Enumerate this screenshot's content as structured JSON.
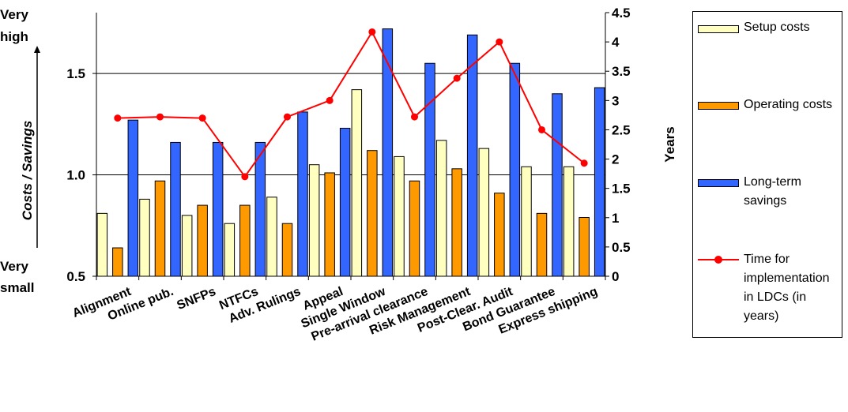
{
  "chart_data": {
    "type": "bar",
    "categories": [
      "Alignment",
      "Online pub.",
      "SNFPs",
      "NTFCs",
      "Adv. Rulings",
      "Appeal",
      "Single Window",
      "Pre-arrival clearance",
      "Risk Management",
      "Post-Clear. Audit",
      "Bond Guarantee",
      "Express shipping"
    ],
    "series": [
      {
        "name": "Setup costs",
        "color": "#ffffc0",
        "axis": "left",
        "values": [
          0.81,
          0.88,
          0.8,
          0.76,
          0.89,
          1.05,
          1.42,
          1.09,
          1.17,
          1.13,
          1.04,
          1.04
        ]
      },
      {
        "name": "Operating costs",
        "color": "#ff9900",
        "axis": "left",
        "values": [
          0.64,
          0.97,
          0.85,
          0.85,
          0.76,
          1.01,
          1.12,
          0.97,
          1.03,
          0.91,
          0.81,
          0.79
        ]
      },
      {
        "name": "Long-term savings",
        "color": "#3366ff",
        "axis": "left",
        "values": [
          1.27,
          1.16,
          1.16,
          1.16,
          1.31,
          1.23,
          1.72,
          1.55,
          1.69,
          1.55,
          1.4,
          1.43
        ]
      },
      {
        "name": "Time for implementation in LDCs (in years)",
        "type": "line",
        "color": "#ff0000",
        "axis": "right",
        "values": [
          2.7,
          2.72,
          2.7,
          1.7,
          2.72,
          3.0,
          4.17,
          2.72,
          3.38,
          4.0,
          2.5,
          1.93
        ]
      }
    ],
    "ylabel": "Costs / Savings",
    "ylabel_top": [
      "Very",
      "high"
    ],
    "ylabel_bottom": [
      "Very",
      "small"
    ],
    "ylim": [
      0.5,
      1.8
    ],
    "yticks": [
      "0.5",
      "1.0",
      "1.5"
    ],
    "y2label": "Years",
    "y2lim": [
      0,
      4.5
    ],
    "y2ticks": [
      "0",
      "0.5",
      "1",
      "1.5",
      "2",
      "2.5",
      "3",
      "3.5",
      "4",
      "4.5"
    ],
    "grid": "horizontal at 1.0 and 1.5",
    "legend_position": "right"
  }
}
